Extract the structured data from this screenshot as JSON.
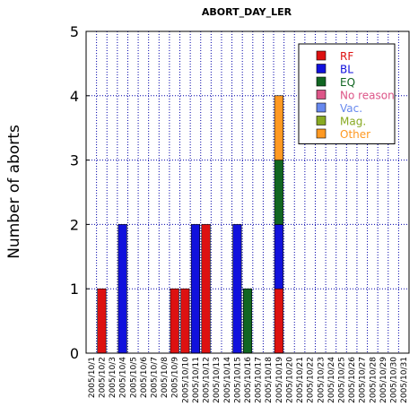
{
  "chart_data": {
    "type": "bar",
    "stacked": true,
    "title": "ABORT_DAY_LER",
    "xlabel": "",
    "ylabel": "Number of aborts",
    "ylim": [
      0,
      5
    ],
    "yticks": [
      "0",
      "1",
      "2",
      "3",
      "4",
      "5"
    ],
    "grid": true,
    "legend_position": "top-right",
    "categories": [
      "2005/10/1",
      "2005/10/2",
      "2005/10/3",
      "2005/10/4",
      "2005/10/5",
      "2005/10/6",
      "2005/10/7",
      "2005/10/8",
      "2005/10/9",
      "2005/10/10",
      "2005/10/11",
      "2005/10/12",
      "2005/10/13",
      "2005/10/14",
      "2005/10/15",
      "2005/10/16",
      "2005/10/17",
      "2005/10/18",
      "2005/10/19",
      "2005/10/20",
      "2005/10/21",
      "2005/10/22",
      "2005/10/23",
      "2005/10/24",
      "2005/10/25",
      "2005/10/26",
      "2005/10/27",
      "2005/10/28",
      "2005/10/29",
      "2005/10/30",
      "2005/10/31"
    ],
    "series": [
      {
        "name": "RF",
        "color": "#dd1111",
        "values": [
          0,
          1,
          0,
          0,
          0,
          0,
          0,
          0,
          1,
          1,
          0,
          2,
          0,
          0,
          0,
          0,
          0,
          0,
          1,
          0,
          0,
          0,
          0,
          0,
          0,
          0,
          0,
          0,
          0,
          0,
          0
        ]
      },
      {
        "name": "BL",
        "color": "#1111dd",
        "values": [
          0,
          0,
          0,
          2,
          0,
          0,
          0,
          0,
          0,
          0,
          2,
          0,
          0,
          0,
          2,
          0,
          0,
          0,
          1,
          0,
          0,
          0,
          0,
          0,
          0,
          0,
          0,
          0,
          0,
          0,
          0
        ]
      },
      {
        "name": "EQ",
        "color": "#116622",
        "values": [
          0,
          0,
          0,
          0,
          0,
          0,
          0,
          0,
          0,
          0,
          0,
          0,
          0,
          0,
          0,
          1,
          0,
          0,
          1,
          0,
          0,
          0,
          0,
          0,
          0,
          0,
          0,
          0,
          0,
          0,
          0
        ]
      },
      {
        "name": "No reason",
        "color": "#dd5588",
        "values": [
          0,
          0,
          0,
          0,
          0,
          0,
          0,
          0,
          0,
          0,
          0,
          0,
          0,
          0,
          0,
          0,
          0,
          0,
          0,
          0,
          0,
          0,
          0,
          0,
          0,
          0,
          0,
          0,
          0,
          0,
          0
        ]
      },
      {
        "name": "Vac.",
        "color": "#6688ee",
        "values": [
          0,
          0,
          0,
          0,
          0,
          0,
          0,
          0,
          0,
          0,
          0,
          0,
          0,
          0,
          0,
          0,
          0,
          0,
          0,
          0,
          0,
          0,
          0,
          0,
          0,
          0,
          0,
          0,
          0,
          0,
          0
        ]
      },
      {
        "name": "Mag.",
        "color": "#88aa22",
        "values": [
          0,
          0,
          0,
          0,
          0,
          0,
          0,
          0,
          0,
          0,
          0,
          0,
          0,
          0,
          0,
          0,
          0,
          0,
          0,
          0,
          0,
          0,
          0,
          0,
          0,
          0,
          0,
          0,
          0,
          0,
          0
        ]
      },
      {
        "name": "Other",
        "color": "#ff9922",
        "values": [
          0,
          0,
          0,
          0,
          0,
          0,
          0,
          0,
          0,
          0,
          0,
          0,
          0,
          0,
          0,
          0,
          0,
          0,
          1,
          0,
          0,
          0,
          0,
          0,
          0,
          0,
          0,
          0,
          0,
          0,
          0
        ]
      }
    ]
  }
}
